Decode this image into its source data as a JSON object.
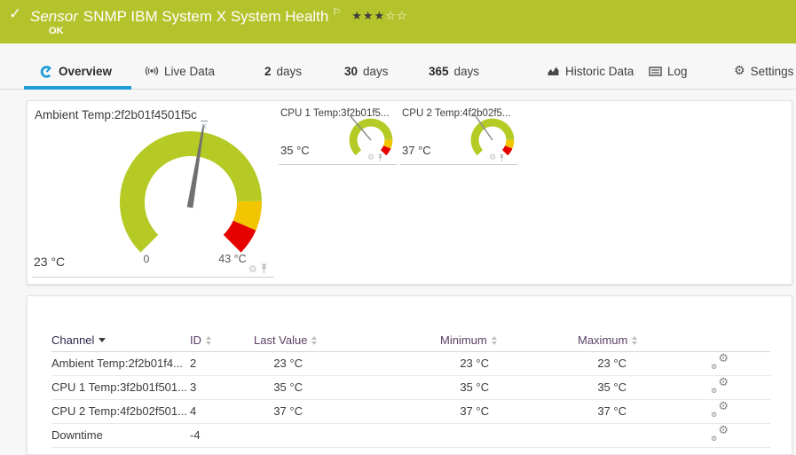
{
  "header": {
    "type_label": "Sensor",
    "title": "SNMP IBM System X System Health",
    "status": "OK",
    "priority": {
      "filled": 3,
      "total": 5
    }
  },
  "tabs": [
    {
      "label": "Overview",
      "icon": "gauge-icon",
      "active": true
    },
    {
      "label": "Live Data",
      "icon": "broadcast-icon"
    },
    {
      "num": "2",
      "label": "days"
    },
    {
      "num": "30",
      "label": "days"
    },
    {
      "num": "365",
      "label": "days"
    },
    {
      "label": "Historic Data",
      "icon": "area-chart-icon"
    },
    {
      "label": "Log",
      "icon": "log-icon"
    },
    {
      "label": "Settings",
      "icon": "gear-icon"
    }
  ],
  "gauges": {
    "main": {
      "title": "Ambient Temp:2f2b01f4501f5c",
      "value_label": "23 °C",
      "value_num": 23,
      "scale_min_label": "0",
      "scale_max_label": "43 °C",
      "range": [
        0,
        43
      ],
      "avg_marker": "x̄"
    },
    "small": [
      {
        "title": "CPU 1 Temp:3f2b01f5...",
        "value_label": "35 °C",
        "value_num": 35
      },
      {
        "title": "CPU 2 Temp:4f2b02f5...",
        "value_label": "37 °C",
        "value_num": 37
      }
    ]
  },
  "table": {
    "columns": [
      "Channel",
      "ID",
      "Last Value",
      "Minimum",
      "Maximum"
    ],
    "rows": [
      {
        "channel": "Ambient Temp:2f2b01f4...",
        "id": "2",
        "last": "23 °C",
        "min": "23 °C",
        "max": "23 °C"
      },
      {
        "channel": "CPU 1 Temp:3f2b01f501...",
        "id": "3",
        "last": "35 °C",
        "min": "35 °C",
        "max": "35 °C"
      },
      {
        "channel": "CPU 2 Temp:4f2b02f501...",
        "id": "4",
        "last": "37 °C",
        "min": "37 °C",
        "max": "37 °C"
      },
      {
        "channel": "Downtime",
        "id": "-4",
        "last": "",
        "min": "",
        "max": ""
      }
    ]
  },
  "colors": {
    "banner_ok_green": "#b4c32b",
    "gauge_green": "#b5ca25",
    "gauge_yellow": "#f1c500",
    "gauge_red": "#e60000",
    "accent_blue": "#1e9cd8"
  }
}
